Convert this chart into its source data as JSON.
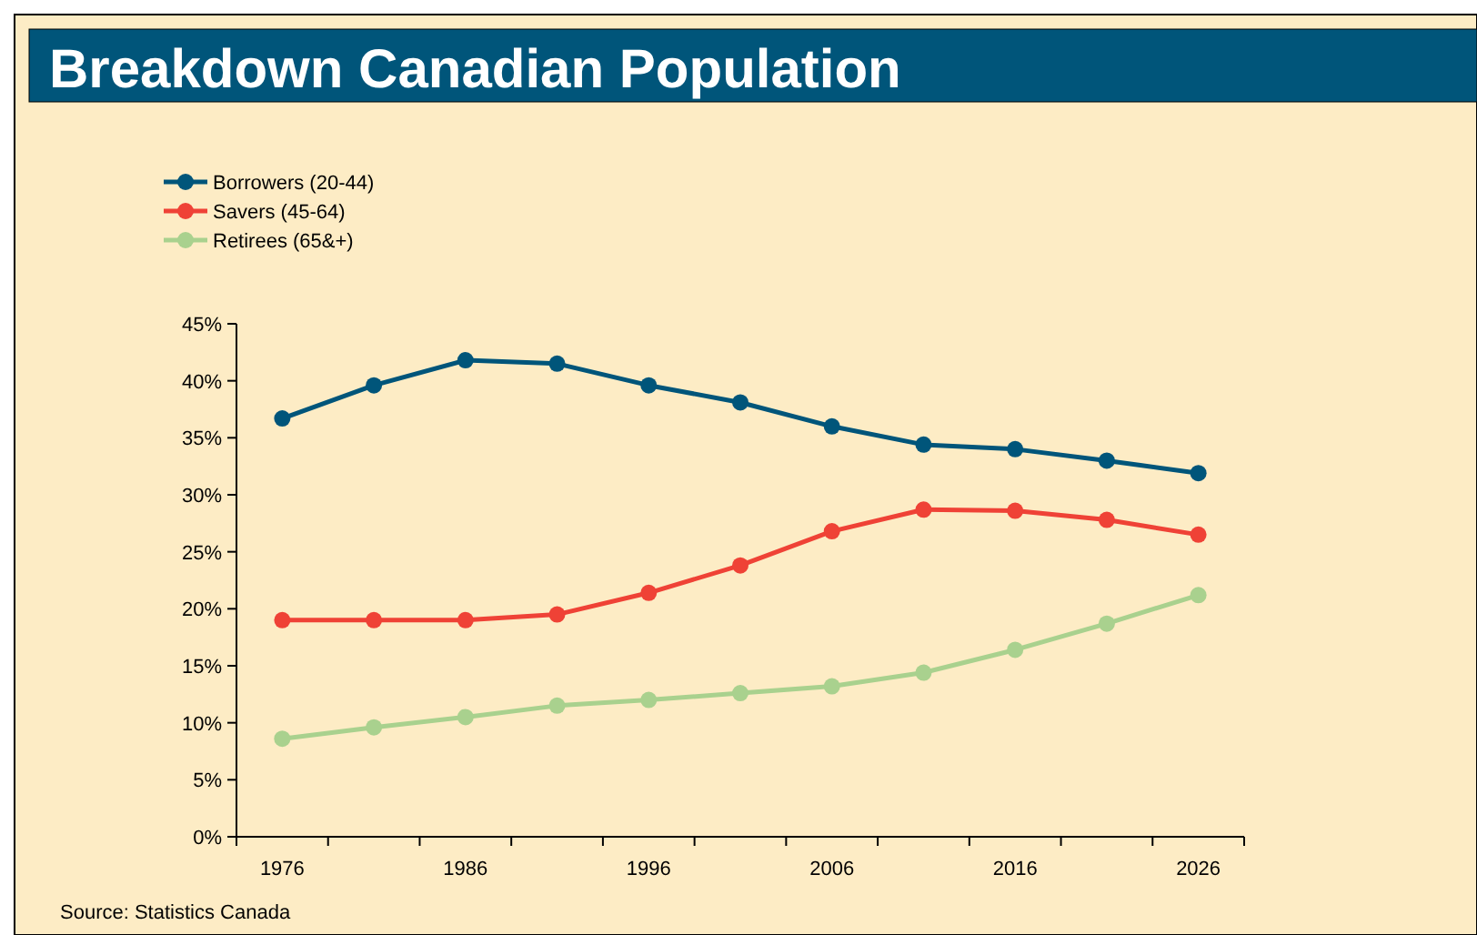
{
  "chart_data": {
    "type": "line",
    "title": "Breakdown Canadian Population",
    "categories": [
      "1976",
      null,
      "1986",
      null,
      "1996",
      null,
      "2006",
      null,
      "2016",
      null,
      "2026"
    ],
    "series": [
      {
        "name": "Borrowers (20-44)",
        "color": "#00557a",
        "values": [
          36.7,
          39.6,
          41.8,
          41.5,
          39.6,
          38.1,
          36.0,
          34.4,
          34.0,
          33.0,
          31.9
        ]
      },
      {
        "name": "Savers (45-64)",
        "color": "#ef4236",
        "values": [
          19.0,
          19.0,
          19.0,
          19.5,
          21.4,
          23.8,
          26.8,
          28.7,
          28.6,
          27.8,
          26.5
        ]
      },
      {
        "name": "Retirees (65&+)",
        "color": "#a9d18e",
        "values": [
          8.6,
          9.6,
          10.5,
          11.5,
          12.0,
          12.6,
          13.2,
          14.4,
          16.4,
          18.7,
          21.2
        ]
      }
    ],
    "ylim": [
      0,
      45
    ],
    "yticks": [
      {
        "value": 0,
        "label": "0%"
      },
      {
        "value": 5,
        "label": "5%"
      },
      {
        "value": 10,
        "label": "10%"
      },
      {
        "value": 15,
        "label": "15%"
      },
      {
        "value": 20,
        "label": "20%"
      },
      {
        "value": 25,
        "label": "25%"
      },
      {
        "value": 30,
        "label": "30%"
      },
      {
        "value": 35,
        "label": "35%"
      },
      {
        "value": 40,
        "label": "40%"
      },
      {
        "value": 45,
        "label": "45%"
      }
    ],
    "marker": "circle",
    "line_style": "solid",
    "grid": false,
    "legend": "top left",
    "annotations": [
      "Source: Statistics Canada"
    ]
  }
}
